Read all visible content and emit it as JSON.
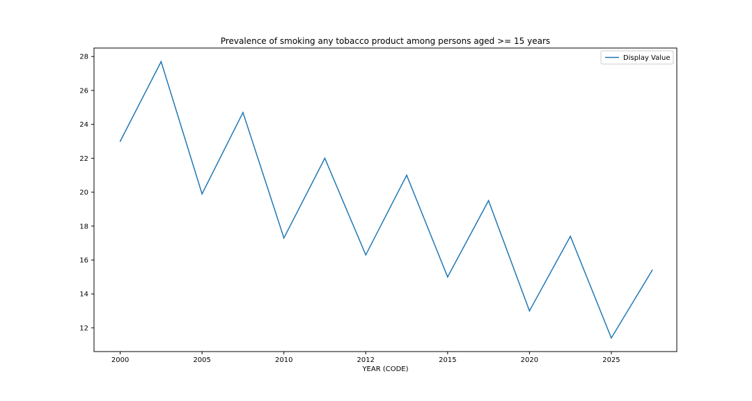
{
  "chart_data": {
    "type": "line",
    "title": "Prevalence of smoking any tobacco product among persons aged >= 15 years",
    "xlabel": "YEAR (CODE)",
    "ylabel": "",
    "x_tick_labels": [
      "2000",
      "2005",
      "2010",
      "2012",
      "2015",
      "2020",
      "2025"
    ],
    "y_ticks": [
      12,
      14,
      16,
      18,
      20,
      22,
      24,
      26,
      28
    ],
    "ylim": [
      10.6,
      28.5
    ],
    "xlim": [
      -0.32,
      6.8
    ],
    "grid": false,
    "legend_position": "top-right",
    "series": [
      {
        "name": "Display Value",
        "color": "#1f77b4",
        "x": [
          0,
          0.5,
          1,
          1.5,
          2,
          2.5,
          3,
          3.5,
          4,
          4.5,
          5,
          5.5,
          6,
          6.5
        ],
        "values": [
          23.0,
          27.7,
          19.9,
          24.7,
          17.3,
          22.0,
          16.3,
          21.0,
          15.0,
          19.5,
          13.0,
          17.4,
          11.4,
          15.4
        ]
      }
    ]
  }
}
